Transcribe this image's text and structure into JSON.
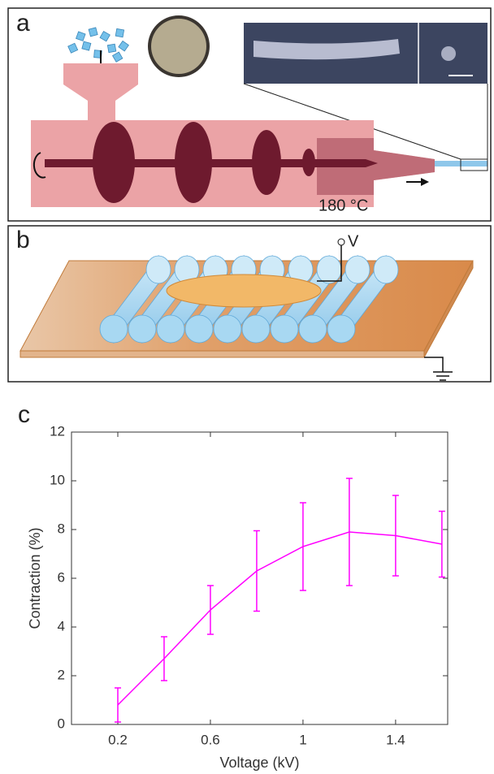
{
  "figure": {
    "labels": [
      "a",
      "b",
      "c"
    ],
    "temperature": "180 °C",
    "voltage": "V"
  },
  "chart_data": {
    "type": "line",
    "xlabel": "Voltage (kV)",
    "ylabel": "Contraction (%)",
    "x": [
      0.2,
      0.4,
      0.6,
      0.8,
      1.0,
      1.2,
      1.4,
      1.6
    ],
    "series": [
      {
        "color": "#ff00ff",
        "values": [
          0.8,
          2.7,
          4.7,
          6.3,
          7.3,
          7.9,
          7.75,
          7.4
        ],
        "errors": [
          0.7,
          0.9,
          1.0,
          1.65,
          1.8,
          2.2,
          1.65,
          1.35
        ]
      }
    ],
    "xlim": [
      0,
      1.625
    ],
    "xticks": [
      0.2,
      0.6,
      1,
      1.4
    ],
    "ylim": [
      0,
      12
    ],
    "yticks": [
      0,
      2,
      4,
      6,
      8,
      10,
      12
    ]
  }
}
